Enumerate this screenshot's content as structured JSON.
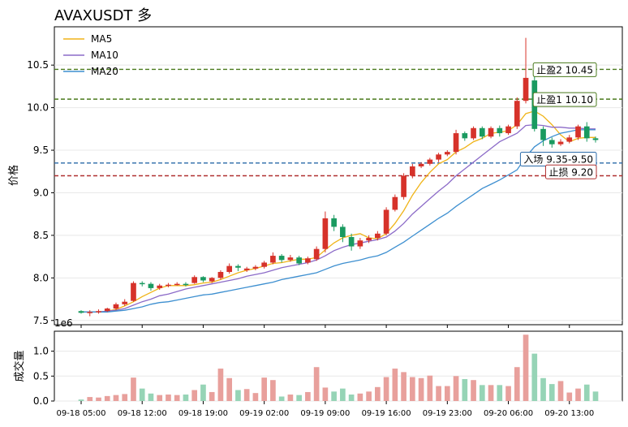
{
  "chart_data": [
    {
      "type": "candlestick",
      "title": "AVAXUSDT  多",
      "ylabel": "价格",
      "ylim": [
        7.45,
        10.95
      ],
      "yticks": [
        "7.5",
        "8.0",
        "8.5",
        "9.0",
        "9.5",
        "10.0",
        "10.5"
      ],
      "offset_label": "1e6",
      "legend": {
        "position": "top-left",
        "entries": [
          {
            "name": "MA5",
            "color": "#f0b418"
          },
          {
            "name": "MA10",
            "color": "#8c6bc8"
          },
          {
            "name": "MA20",
            "color": "#3d8fd0"
          }
        ]
      },
      "levels": [
        {
          "label": "止盈2 10.45",
          "value": 10.45,
          "color": "#4a7a1c",
          "style": "dashed"
        },
        {
          "label": "止盈1 10.10",
          "value": 10.1,
          "color": "#4a7a1c",
          "style": "dashed"
        },
        {
          "label": "入场 9.35-9.50",
          "value": 9.35,
          "color": "#2a6aa8",
          "style": "dashed"
        },
        {
          "label": "止损 9.20",
          "value": 9.2,
          "color": "#b03030",
          "style": "dashed"
        }
      ],
      "colors": {
        "up": "#d6322a",
        "down": "#1a9a60"
      },
      "candles": [
        [
          7.61,
          7.59,
          7.62,
          7.58
        ],
        [
          7.59,
          7.6,
          7.62,
          7.55
        ],
        [
          7.6,
          7.61,
          7.63,
          7.58
        ],
        [
          7.61,
          7.64,
          7.65,
          7.6
        ],
        [
          7.64,
          7.69,
          7.71,
          7.62
        ],
        [
          7.69,
          7.72,
          7.75,
          7.67
        ],
        [
          7.73,
          7.94,
          7.96,
          7.72
        ],
        [
          7.94,
          7.93,
          7.96,
          7.9
        ],
        [
          7.93,
          7.88,
          7.95,
          7.85
        ],
        [
          7.88,
          7.91,
          7.93,
          7.86
        ],
        [
          7.91,
          7.92,
          7.94,
          7.89
        ],
        [
          7.92,
          7.93,
          7.95,
          7.91
        ],
        [
          7.93,
          7.92,
          7.95,
          7.9
        ],
        [
          7.94,
          8.01,
          8.03,
          7.93
        ],
        [
          8.01,
          7.97,
          8.02,
          7.95
        ],
        [
          7.96,
          8.0,
          8.01,
          7.94
        ],
        [
          8.0,
          8.07,
          8.09,
          7.98
        ],
        [
          8.07,
          8.14,
          8.17,
          8.05
        ],
        [
          8.14,
          8.12,
          8.16,
          8.08
        ],
        [
          8.09,
          8.11,
          8.13,
          8.07
        ],
        [
          8.11,
          8.13,
          8.15,
          8.09
        ],
        [
          8.13,
          8.18,
          8.2,
          8.11
        ],
        [
          8.18,
          8.26,
          8.3,
          8.16
        ],
        [
          8.26,
          8.21,
          8.28,
          8.18
        ],
        [
          8.21,
          8.24,
          8.27,
          8.19
        ],
        [
          8.24,
          8.17,
          8.26,
          8.15
        ],
        [
          8.18,
          8.23,
          8.25,
          8.16
        ],
        [
          8.22,
          8.34,
          8.37,
          8.2
        ],
        [
          8.34,
          8.7,
          8.78,
          8.3
        ],
        [
          8.7,
          8.6,
          8.74,
          8.55
        ],
        [
          8.6,
          8.48,
          8.63,
          8.42
        ],
        [
          8.48,
          8.37,
          8.52,
          8.32
        ],
        [
          8.37,
          8.44,
          8.47,
          8.34
        ],
        [
          8.44,
          8.47,
          8.5,
          8.41
        ],
        [
          8.47,
          8.52,
          8.55,
          8.44
        ],
        [
          8.52,
          8.8,
          8.83,
          8.5
        ],
        [
          8.8,
          8.95,
          8.98,
          8.78
        ],
        [
          8.95,
          9.2,
          9.23,
          8.92
        ],
        [
          9.2,
          9.31,
          9.34,
          9.17
        ],
        [
          9.31,
          9.34,
          9.36,
          9.29
        ],
        [
          9.34,
          9.39,
          9.41,
          9.32
        ],
        [
          9.39,
          9.45,
          9.47,
          9.36
        ],
        [
          9.45,
          9.48,
          9.5,
          9.43
        ],
        [
          9.48,
          9.7,
          9.74,
          9.45
        ],
        [
          9.7,
          9.64,
          9.72,
          9.61
        ],
        [
          9.64,
          9.76,
          9.78,
          9.62
        ],
        [
          9.76,
          9.66,
          9.78,
          9.63
        ],
        [
          9.66,
          9.76,
          9.78,
          9.64
        ],
        [
          9.76,
          9.7,
          9.79,
          9.66
        ],
        [
          9.7,
          9.78,
          9.8,
          9.68
        ],
        [
          9.78,
          10.08,
          10.12,
          9.75
        ],
        [
          10.08,
          10.35,
          10.82,
          10.05
        ],
        [
          10.32,
          9.75,
          10.38,
          9.72
        ],
        [
          9.75,
          9.62,
          9.78,
          9.55
        ],
        [
          9.62,
          9.57,
          9.65,
          9.53
        ],
        [
          9.57,
          9.6,
          9.63,
          9.55
        ],
        [
          9.6,
          9.65,
          9.68,
          9.58
        ],
        [
          9.65,
          9.78,
          9.8,
          9.62
        ],
        [
          9.78,
          9.64,
          9.83,
          9.6
        ],
        [
          9.64,
          9.62,
          9.66,
          9.59
        ]
      ],
      "ma5": [
        7.6,
        7.6,
        7.6,
        7.61,
        7.63,
        7.67,
        7.72,
        7.78,
        7.83,
        7.88,
        7.91,
        7.91,
        7.91,
        7.92,
        7.94,
        7.95,
        7.98,
        8.02,
        8.06,
        8.09,
        8.11,
        8.14,
        8.17,
        8.18,
        8.2,
        8.22,
        8.22,
        8.24,
        8.33,
        8.41,
        8.47,
        8.5,
        8.52,
        8.47,
        8.46,
        8.52,
        8.64,
        8.79,
        8.97,
        9.12,
        9.24,
        9.34,
        9.39,
        9.48,
        9.53,
        9.6,
        9.64,
        9.7,
        9.71,
        9.73,
        9.8,
        9.93,
        9.96,
        9.9,
        9.8,
        9.68,
        9.6,
        9.64,
        9.65,
        9.65
      ],
      "ma10": [
        7.6,
        7.6,
        7.6,
        7.61,
        7.62,
        7.64,
        7.68,
        7.72,
        7.75,
        7.79,
        7.81,
        7.84,
        7.87,
        7.89,
        7.91,
        7.93,
        7.95,
        7.97,
        7.99,
        8.02,
        8.04,
        8.06,
        8.09,
        8.12,
        8.14,
        8.16,
        8.18,
        8.21,
        8.26,
        8.32,
        8.36,
        8.39,
        8.41,
        8.43,
        8.45,
        8.48,
        8.55,
        8.64,
        8.75,
        8.84,
        8.93,
        9.02,
        9.1,
        9.2,
        9.28,
        9.36,
        9.44,
        9.52,
        9.6,
        9.65,
        9.7,
        9.79,
        9.8,
        9.79,
        9.77,
        9.77,
        9.76,
        9.76,
        9.75,
        9.75
      ],
      "ma20": [
        7.6,
        7.6,
        7.6,
        7.6,
        7.61,
        7.62,
        7.64,
        7.66,
        7.69,
        7.71,
        7.72,
        7.74,
        7.76,
        7.78,
        7.8,
        7.81,
        7.83,
        7.85,
        7.87,
        7.89,
        7.91,
        7.93,
        7.95,
        7.98,
        8.0,
        8.02,
        8.04,
        8.06,
        8.1,
        8.14,
        8.17,
        8.19,
        8.21,
        8.24,
        8.26,
        8.3,
        8.36,
        8.42,
        8.49,
        8.56,
        8.63,
        8.7,
        8.76,
        8.84,
        8.91,
        8.98,
        9.05,
        9.1,
        9.15,
        9.21,
        9.27,
        9.42,
        9.54,
        9.61,
        9.66,
        9.7,
        9.72,
        9.74,
        9.74,
        9.74
      ]
    },
    {
      "type": "bar",
      "ylabel": "成交量",
      "ylim": [
        0,
        1.4
      ],
      "yticks": [
        "0.0",
        "0.5",
        "1.0"
      ],
      "x_ticks": [
        "09-18 05:00",
        "09-18 12:00",
        "09-18 19:00",
        "09-19 02:00",
        "09-19 09:00",
        "09-19 16:00",
        "09-19 23:00",
        "09-20 06:00",
        "09-20 13:00"
      ],
      "volumes": [
        0.03,
        0.08,
        0.07,
        0.1,
        0.12,
        0.14,
        0.47,
        0.25,
        0.15,
        0.12,
        0.13,
        0.12,
        0.13,
        0.22,
        0.33,
        0.18,
        0.65,
        0.46,
        0.22,
        0.24,
        0.16,
        0.47,
        0.42,
        0.09,
        0.13,
        0.12,
        0.18,
        0.68,
        0.27,
        0.19,
        0.25,
        0.13,
        0.15,
        0.19,
        0.28,
        0.48,
        0.65,
        0.58,
        0.48,
        0.46,
        0.51,
        0.3,
        0.3,
        0.5,
        0.44,
        0.42,
        0.32,
        0.32,
        0.32,
        0.3,
        0.68,
        1.33,
        0.95,
        0.46,
        0.34,
        0.4,
        0.17,
        0.25,
        0.33,
        0.19
      ]
    }
  ]
}
